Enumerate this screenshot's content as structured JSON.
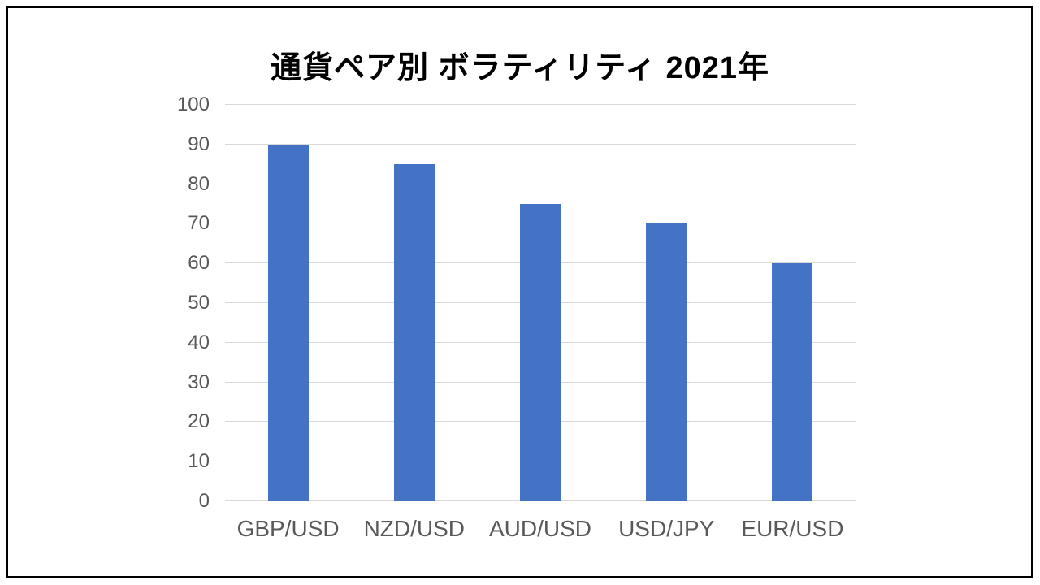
{
  "frame": {
    "border_color": "#000000",
    "background_color": "#ffffff"
  },
  "chart_data": {
    "type": "bar",
    "title": "通貨ペア別 ボラティリティ 2021年",
    "categories": [
      "GBP/USD",
      "NZD/USD",
      "AUD/USD",
      "USD/JPY",
      "EUR/USD"
    ],
    "values": [
      90,
      85,
      75,
      70,
      60
    ],
    "xlabel": "",
    "ylabel": "",
    "ylim": [
      0,
      100
    ],
    "ytick_step": 10,
    "ytick_labels": [
      "0",
      "10",
      "20",
      "30",
      "40",
      "50",
      "60",
      "70",
      "80",
      "90",
      "100"
    ],
    "grid": true,
    "legend": "none",
    "bar_color": "#4472C4",
    "gridline_color": "#D9D9D9",
    "axis_text_color": "#595959",
    "title_color": "#000000"
  }
}
